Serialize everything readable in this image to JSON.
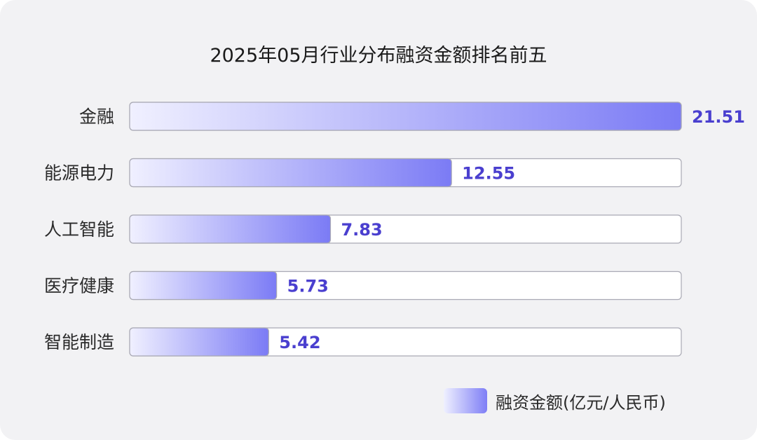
{
  "chart_data": {
    "type": "bar",
    "orientation": "horizontal",
    "title": "2025年05月行业分布融资金额排名前五",
    "categories": [
      "金融",
      "能源电力",
      "人工智能",
      "医疗健康",
      "智能制造"
    ],
    "series": [
      {
        "name": "融资金额(亿元/人民币)",
        "values": [
          21.51,
          12.55,
          7.83,
          5.73,
          5.42
        ]
      }
    ],
    "value_labels": [
      "21.51",
      "12.55",
      "7.83",
      "5.73",
      "5.42"
    ],
    "xlim": [
      0,
      21.51
    ],
    "grid": false,
    "legend_position": "bottom-right",
    "colors": {
      "bar_start": "#f0f0ff",
      "bar_end": "#7b7bf5",
      "value_label": "#4a3fcf",
      "track_border": "#a9a9b4",
      "track_fill": "#ffffff"
    }
  }
}
